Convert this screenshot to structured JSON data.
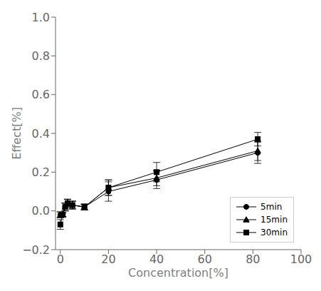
{
  "chart_data": {
    "type": "line",
    "xlabel": "Concentration[%]",
    "ylabel": "Effect[%]",
    "x": [
      0,
      1,
      2,
      3,
      5,
      10,
      20,
      40,
      82
    ],
    "series": [
      {
        "name": "5min",
        "color": "#000000",
        "marker": "circle",
        "values": [
          -0.02,
          -0.02,
          0.02,
          0.04,
          0.03,
          0.02,
          0.1,
          0.16,
          0.3
        ],
        "yerr": [
          0.015,
          0.01,
          0.02,
          0.02,
          0.02,
          0.015,
          0.05,
          0.045,
          0.055
        ]
      },
      {
        "name": "15min",
        "color": "#000000",
        "marker": "triangle",
        "values": [
          -0.02,
          -0.02,
          0.02,
          0.04,
          0.03,
          0.02,
          0.12,
          0.17,
          0.31
        ],
        "yerr": [
          0.015,
          0.01,
          0.02,
          0.02,
          0.02,
          0.015,
          0.04,
          0.04,
          0.05
        ]
      },
      {
        "name": "30min",
        "color": "#000000",
        "marker": "square",
        "values": [
          -0.07,
          -0.02,
          0.02,
          0.04,
          0.03,
          0.02,
          0.12,
          0.2,
          0.37
        ],
        "yerr": [
          0.025,
          0.01,
          0.02,
          0.02,
          0.02,
          0.015,
          0.04,
          0.05,
          0.035
        ]
      }
    ],
    "xlim": [
      -2,
      100
    ],
    "ylim": [
      -0.2,
      1.0
    ],
    "xticks": [
      0,
      20,
      40,
      60,
      80,
      100
    ],
    "yticks": [
      {
        "value": -0.2,
        "label": "−0.2"
      },
      {
        "value": 0.0,
        "label": "0.0"
      },
      0.2,
      0.4,
      0.6,
      0.8,
      {
        "value": 1.0,
        "label": "1.0"
      }
    ],
    "grid": false,
    "legend": "lower right"
  }
}
